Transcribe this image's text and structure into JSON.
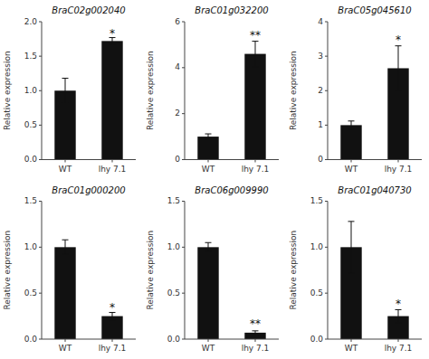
{
  "chart_data": [
    {
      "type": "bar",
      "title": "BraC02g002040",
      "categories": [
        "WT",
        "lhy 7.1"
      ],
      "values": [
        1.0,
        1.72
      ],
      "errors": [
        0.18,
        0.05
      ],
      "color": "#111111",
      "ylabel": "Relative expression",
      "ylim": [
        0,
        2.0
      ],
      "yticks": [
        {
          "value": 0.0,
          "label": "0.0"
        },
        0.5,
        {
          "value": 1.0,
          "label": "1.0"
        },
        1.5,
        {
          "value": 2.0,
          "label": "2.0"
        }
      ],
      "grid": false,
      "annotations": [
        {
          "text": "*",
          "x": "lhy 7.1",
          "y": 1.77
        }
      ]
    },
    {
      "type": "bar",
      "title": "BraC01g032200",
      "categories": [
        "WT",
        "lhy 7.1"
      ],
      "values": [
        1.0,
        4.6
      ],
      "errors": [
        0.12,
        0.55
      ],
      "color": "#111111",
      "ylabel": "Relative expression",
      "ylim": [
        0,
        6
      ],
      "yticks": [
        0,
        2,
        4,
        6
      ],
      "grid": false,
      "annotations": [
        {
          "text": "**",
          "x": "lhy 7.1",
          "y": 5.2
        }
      ]
    },
    {
      "type": "bar",
      "title": "BraC05g045610",
      "categories": [
        "WT",
        "lhy 7.1"
      ],
      "values": [
        1.0,
        2.65
      ],
      "errors": [
        0.12,
        0.65
      ],
      "color": "#111111",
      "ylabel": "Relative expression",
      "ylim": [
        0,
        4
      ],
      "yticks": [
        0,
        1,
        2,
        3,
        4
      ],
      "grid": false,
      "annotations": [
        {
          "text": "*",
          "x": "lhy 7.1",
          "y": 3.35
        }
      ]
    },
    {
      "type": "bar",
      "title": "BraC01g000200",
      "categories": [
        "WT",
        "lhy 7.1"
      ],
      "values": [
        1.0,
        0.25
      ],
      "errors": [
        0.08,
        0.04
      ],
      "color": "#111111",
      "ylabel": "Relative expression",
      "ylim": [
        0,
        1.5
      ],
      "yticks": [
        {
          "value": 0.0,
          "label": "0.0"
        },
        0.5,
        {
          "value": 1.0,
          "label": "1.0"
        },
        1.5
      ],
      "grid": false,
      "annotations": [
        {
          "text": "*",
          "x": "lhy 7.1",
          "y": 0.3
        }
      ]
    },
    {
      "type": "bar",
      "title": "BraC06g009990",
      "categories": [
        "WT",
        "lhy 7.1"
      ],
      "values": [
        1.0,
        0.07
      ],
      "errors": [
        0.05,
        0.02
      ],
      "color": "#111111",
      "ylabel": "Relative expression",
      "ylim": [
        0,
        1.5
      ],
      "yticks": [
        {
          "value": 0.0,
          "label": "0.0"
        },
        0.5,
        {
          "value": 1.0,
          "label": "1.0"
        },
        1.5
      ],
      "grid": false,
      "annotations": [
        {
          "text": "**",
          "x": "lhy 7.1",
          "y": 0.12
        }
      ]
    },
    {
      "type": "bar",
      "title": "BraC01g040730",
      "categories": [
        "WT",
        "lhy 7.1"
      ],
      "values": [
        1.0,
        0.25
      ],
      "errors": [
        0.28,
        0.07
      ],
      "color": "#111111",
      "ylabel": "Relative expression",
      "ylim": [
        0,
        1.5
      ],
      "yticks": [
        {
          "value": 0.0,
          "label": "0.0"
        },
        0.5,
        {
          "value": 1.0,
          "label": "1.0"
        },
        1.5
      ],
      "grid": false,
      "annotations": [
        {
          "text": "*",
          "x": "lhy 7.1",
          "y": 0.33
        }
      ]
    }
  ]
}
